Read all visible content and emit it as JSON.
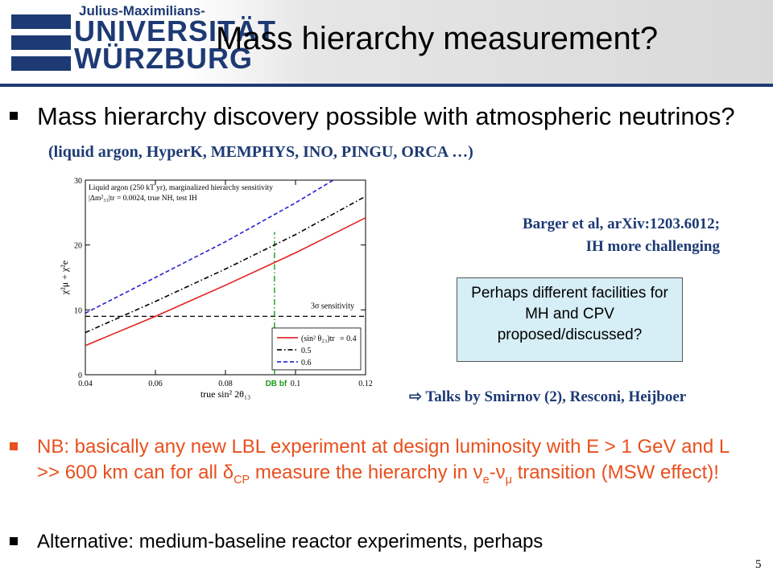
{
  "header": {
    "logo_top": "Julius-Maximilians-",
    "logo_line1": "UNIVERSITÄT",
    "logo_line2": "WÜRZBURG",
    "title": "Mass hierarchy measurement?"
  },
  "bullet1": {
    "text": "Mass hierarchy discovery possible with atmospheric neutrinos?",
    "ref": "(liquid argon, HyperK, MEMPHYS, INO, PINGU, ORCA …)"
  },
  "references": {
    "line1": "Barger et al, arXiv:1203.6012;",
    "line2": "IH more challenging"
  },
  "box_text": "Perhaps different facilities for MH and CPV proposed/discussed?",
  "talks": "⇨ Talks by Smirnov (2), Resconi, Heijboer",
  "nb": {
    "part1": "NB: basically any new LBL experiment at design luminosity with E > 1 GeV and L >> 600 km can for all ",
    "delta": "δ",
    "cp": "CP",
    "part2": " measure the hierarchy in ",
    "nu": "ν",
    "e": "e",
    "dash": "-",
    "mu": "μ",
    "part3": " transition (MSW effect)!"
  },
  "alt": "Alternative: medium-baseline reactor experiments, perhaps",
  "page_number": "5",
  "chart_data": {
    "type": "line",
    "xlabel": "true sin² 2θ₁₃",
    "ylabel": "χ²μ + χ²e",
    "xlim": [
      0.04,
      0.12
    ],
    "ylim": [
      0,
      30
    ],
    "x_ticks": [
      "0.04",
      "0.06",
      "0.08",
      "0.1",
      "0.12"
    ],
    "y_ticks": [
      "0",
      "10",
      "20",
      "30"
    ],
    "annotation_line1": "Liquid argon (250 kT yr), marginalized hierarchy sensitivity",
    "annotation_line2": "|Δm²₃₁|tr = 0.0024, true NH, test IH",
    "sigma_label": "3σ sensitivity",
    "db_label": "DB bf",
    "sigma_level": 9,
    "db_x": 0.094,
    "legend_title": "(sin² θ₂₃)tr",
    "x": [
      0.04,
      0.06,
      0.08,
      0.1,
      0.12
    ],
    "series": [
      {
        "name": "= 0.4",
        "color": "#e02020",
        "dash": "",
        "values": [
          4.5,
          9.0,
          13.8,
          18.8,
          24.2
        ]
      },
      {
        "name": "0.5",
        "color": "#000000",
        "dash": "6,3,1.5,3",
        "values": [
          6.5,
          11.3,
          16.3,
          21.6,
          27.5
        ]
      },
      {
        "name": "0.6",
        "color": "#2020d0",
        "dash": "5,3",
        "values": [
          9.5,
          15.0,
          20.5,
          26.5,
          33.0
        ]
      }
    ],
    "sigma_color": "#000000",
    "db_color": "#1a9a1a"
  }
}
